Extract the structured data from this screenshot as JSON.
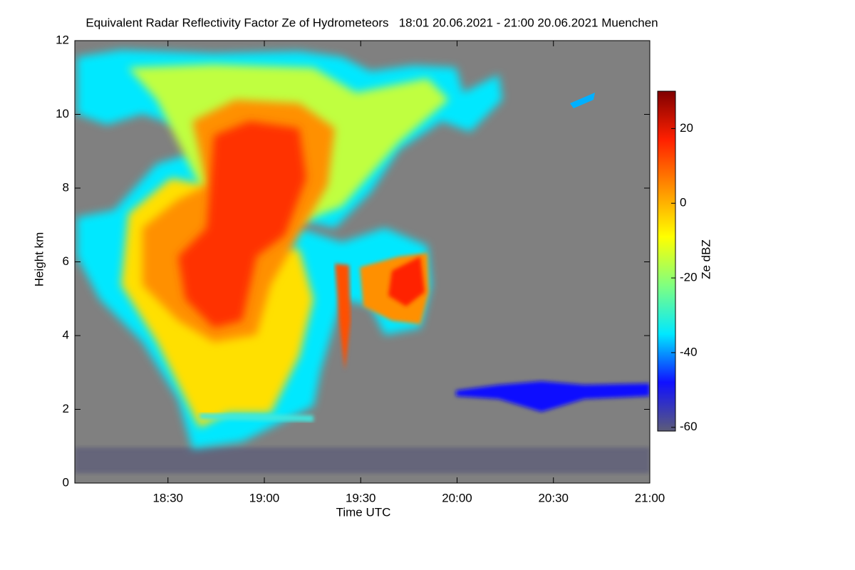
{
  "chart_data": {
    "type": "heatmap",
    "title": "Equivalent Radar Reflectivity Factor Ze of Hydrometeors   18:01 20.06.2021 - 21:00 20.06.2021 Muenchen",
    "xlabel": "Time UTC",
    "ylabel": "Height km",
    "colorbar_label": "Ze dBZ",
    "xlim": [
      1081,
      1260
    ],
    "xticks": [
      {
        "value": 1110,
        "label": "18:30"
      },
      {
        "value": 1140,
        "label": "19:00"
      },
      {
        "value": 1170,
        "label": "19:30"
      },
      {
        "value": 1200,
        "label": "20:00"
      },
      {
        "value": 1230,
        "label": "20:30"
      },
      {
        "value": 1260,
        "label": "21:00"
      }
    ],
    "ylim": [
      0,
      12
    ],
    "yticks": [
      0,
      2,
      4,
      6,
      8,
      10,
      12
    ],
    "clim": [
      -61,
      30
    ],
    "cticks": [
      -60,
      -40,
      -20,
      0,
      20
    ],
    "colormap": [
      "#5c5c78",
      "#1010ff",
      "#00e8ff",
      "#80ff80",
      "#ffff00",
      "#ff9000",
      "#ff2000",
      "#800000"
    ],
    "background": "#808080"
  }
}
